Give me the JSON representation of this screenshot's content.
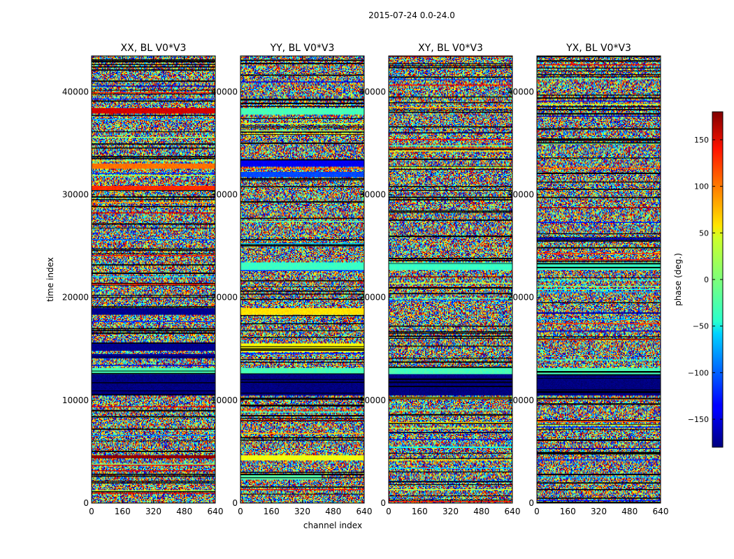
{
  "figure": {
    "suptitle": "2015-07-24 0.0-24.0"
  },
  "chart_data": {
    "type": "heatmap",
    "suptitle": "2015-07-24 0.0-24.0",
    "xlabel": "channel index",
    "ylabel": "time index",
    "xlim": [
      0,
      640
    ],
    "ylim": [
      0,
      43500
    ],
    "x_ticks": [
      0,
      160,
      320,
      480,
      640
    ],
    "y_ticks": [
      0,
      10000,
      20000,
      30000,
      40000
    ],
    "colormap": "jet",
    "colorbar": {
      "label": "phase (deg.)",
      "range": [
        -180,
        180
      ],
      "ticks": [
        -150,
        -100,
        -50,
        0,
        50,
        100,
        150
      ],
      "tick_labels": [
        "−150",
        "−100",
        "−50",
        "0",
        "50",
        "100",
        "150"
      ]
    },
    "panels": [
      {
        "title": "XX, BL V0*V3",
        "bands": [
          {
            "t0": 4300,
            "t1": 4700,
            "phase": 175,
            "c0": 0,
            "c1": 640
          },
          {
            "t0": 10500,
            "t1": 12500,
            "phase": -180,
            "c0": 0,
            "c1": 640
          },
          {
            "t0": 12500,
            "t1": 13200,
            "phase": -20,
            "c0": 0,
            "c1": 640
          },
          {
            "t0": 14100,
            "t1": 14500,
            "phase": -175,
            "c0": 0,
            "c1": 640
          },
          {
            "t0": 14800,
            "t1": 15600,
            "phase": -175,
            "c0": 0,
            "c1": 640
          },
          {
            "t0": 18300,
            "t1": 19000,
            "phase": -175,
            "c0": 0,
            "c1": 640
          },
          {
            "t0": 30400,
            "t1": 30900,
            "phase": 120,
            "c0": 0,
            "c1": 640
          },
          {
            "t0": 32500,
            "t1": 33000,
            "phase": 95,
            "c0": 0,
            "c1": 640
          },
          {
            "t0": 37900,
            "t1": 38400,
            "phase": 150,
            "c0": 0,
            "c1": 640
          }
        ]
      },
      {
        "title": "YY, BL V0*V3",
        "bands": [
          {
            "t0": 2300,
            "t1": 2800,
            "phase": -15,
            "c0": 0,
            "c1": 420
          },
          {
            "t0": 4100,
            "t1": 4700,
            "phase": 40,
            "c0": 0,
            "c1": 640
          },
          {
            "t0": 10500,
            "t1": 12500,
            "phase": -180,
            "c0": 0,
            "c1": 640
          },
          {
            "t0": 12500,
            "t1": 13200,
            "phase": -20,
            "c0": 0,
            "c1": 640
          },
          {
            "t0": 14700,
            "t1": 15500,
            "phase": 45,
            "c0": 0,
            "c1": 640
          },
          {
            "t0": 18300,
            "t1": 19000,
            "phase": 55,
            "c0": 0,
            "c1": 640
          },
          {
            "t0": 22700,
            "t1": 23400,
            "phase": -25,
            "c0": 0,
            "c1": 640
          },
          {
            "t0": 31700,
            "t1": 32200,
            "phase": -110,
            "c0": 0,
            "c1": 640
          },
          {
            "t0": 32700,
            "t1": 33300,
            "phase": -140,
            "c0": 0,
            "c1": 640
          },
          {
            "t0": 37800,
            "t1": 38400,
            "phase": -20,
            "c0": 0,
            "c1": 640
          }
        ]
      },
      {
        "title": "XY, BL V0*V3",
        "bands": [
          {
            "t0": 10500,
            "t1": 12500,
            "phase": -180,
            "c0": 0,
            "c1": 640
          },
          {
            "t0": 12500,
            "t1": 13200,
            "phase": -20,
            "c0": 0,
            "c1": 640
          },
          {
            "t0": 22700,
            "t1": 23400,
            "phase": -25,
            "c0": 0,
            "c1": 640
          }
        ]
      },
      {
        "title": "YX, BL V0*V3",
        "bands": [
          {
            "t0": 10500,
            "t1": 12500,
            "phase": -180,
            "c0": 0,
            "c1": 640
          },
          {
            "t0": 12500,
            "t1": 13200,
            "phase": -20,
            "c0": 0,
            "c1": 640
          },
          {
            "t0": 22700,
            "t1": 23400,
            "phase": -25,
            "c0": 0,
            "c1": 640
          }
        ]
      }
    ]
  }
}
